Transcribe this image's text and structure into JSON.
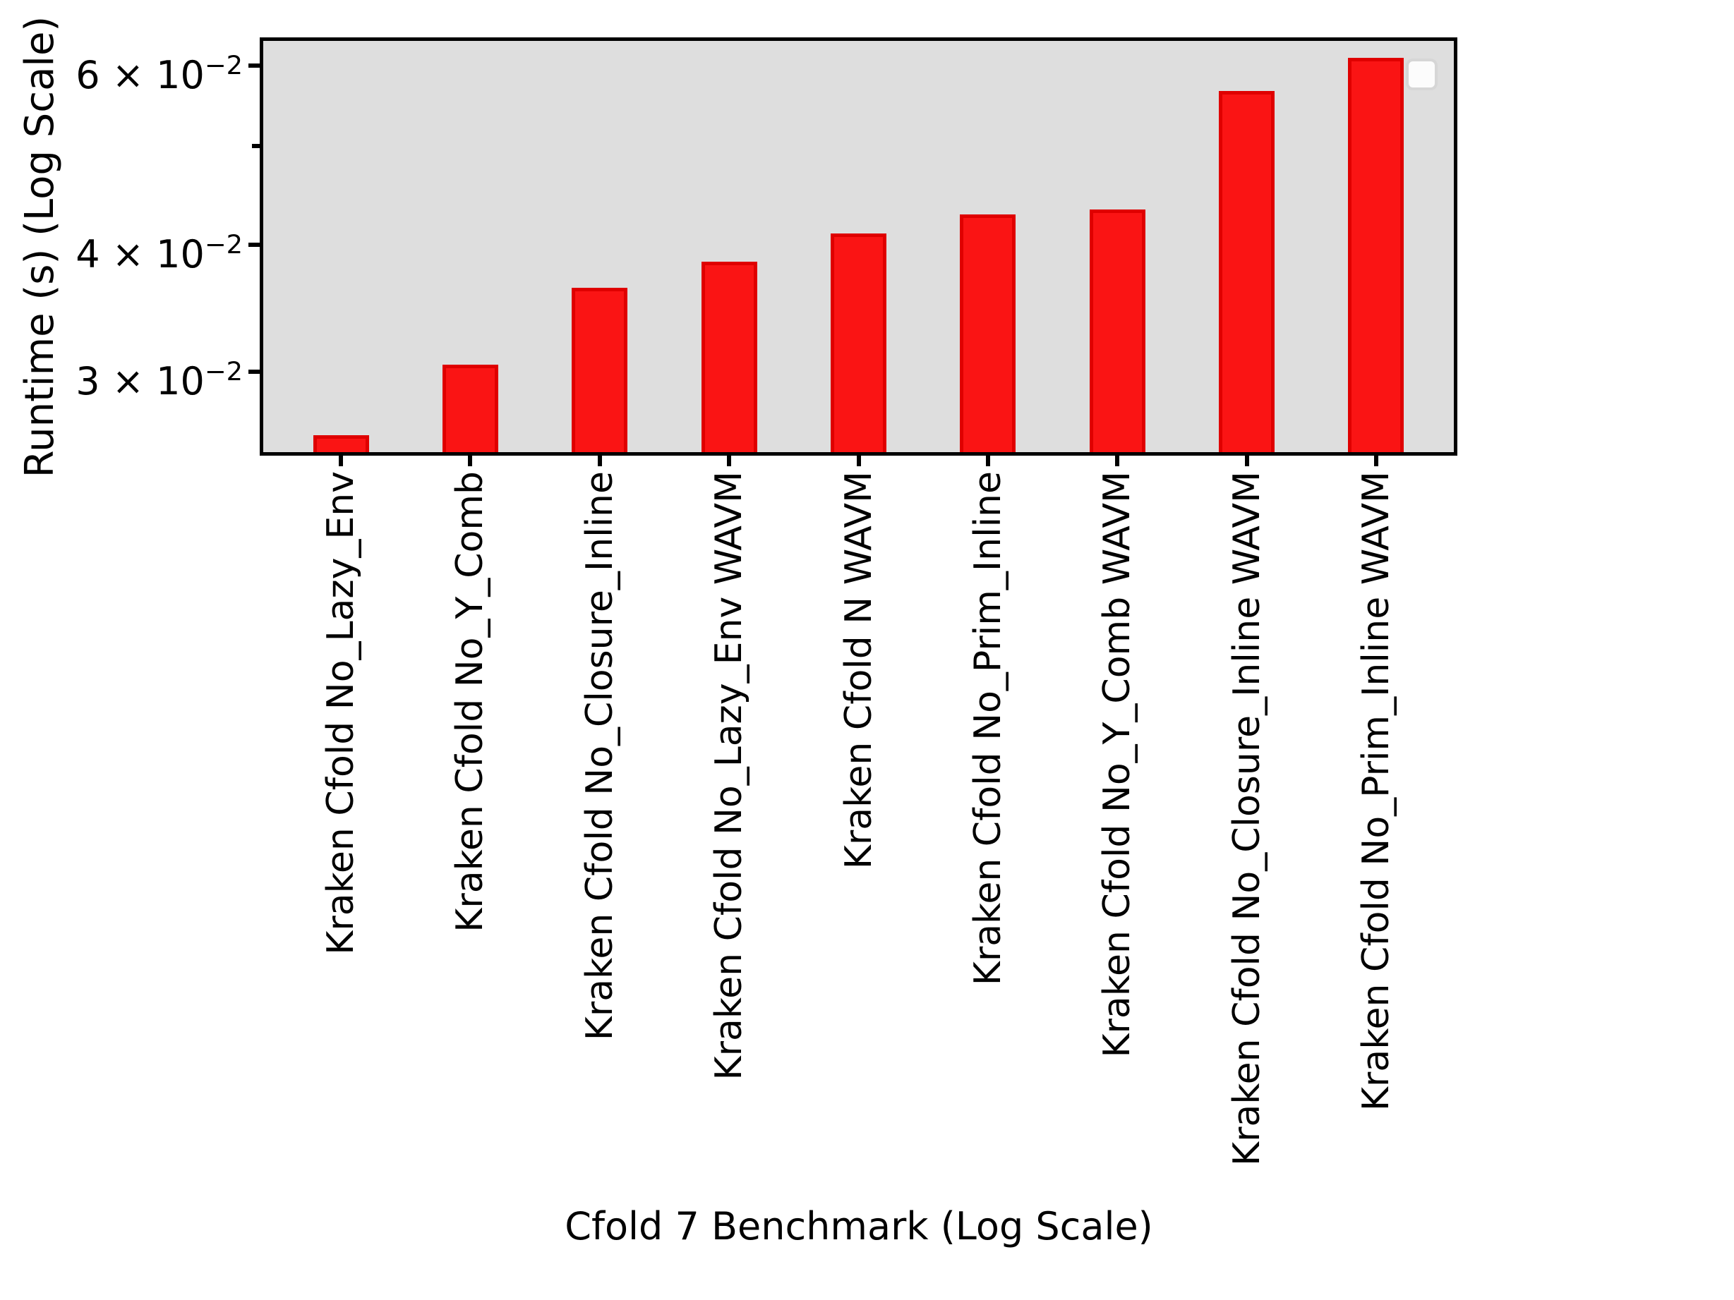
{
  "figure": {
    "background": "#ffffff"
  },
  "chart_data": {
    "type": "bar",
    "title": "",
    "xlabel": "Cfold 7 Benchmark (Log Scale)",
    "ylabel": "Runtime (s) (Log Scale)",
    "yscale": "log",
    "ylim": [
      0.0249,
      0.0635
    ],
    "grid": false,
    "plot_background": "#dedede",
    "bar_fill_color": "#fa1414",
    "bar_edge_color": "#df0000",
    "categories": [
      "Kraken Cfold No_Lazy_Env",
      "Kraken Cfold No_Y_Comb",
      "Kraken Cfold No_Closure_Inline",
      "Kraken Cfold No_Lazy_Env WAVM",
      "Kraken Cfold N WAVM",
      "Kraken Cfold No_Prim_Inline",
      "Kraken Cfold No_Y_Comb WAVM",
      "Kraken Cfold No_Closure_Inline WAVM",
      "Kraken Cfold No_Prim_Inline WAVM"
    ],
    "values": [
      0.026,
      0.0305,
      0.0363,
      0.0385,
      0.041,
      0.0428,
      0.0433,
      0.0566,
      0.061
    ],
    "yticks": [
      {
        "value": 0.06,
        "label": "6 × 10⁻²",
        "coef": "6",
        "exp": "−2",
        "major": true
      },
      {
        "value": 0.05,
        "label": "",
        "coef": "",
        "exp": "",
        "major": false
      },
      {
        "value": 0.04,
        "label": "4 × 10⁻²",
        "coef": "4",
        "exp": "−2",
        "major": true
      },
      {
        "value": 0.03,
        "label": "3 × 10⁻²",
        "coef": "3",
        "exp": "−2",
        "major": true
      }
    ],
    "legend": {
      "visible": true,
      "entries": []
    }
  }
}
